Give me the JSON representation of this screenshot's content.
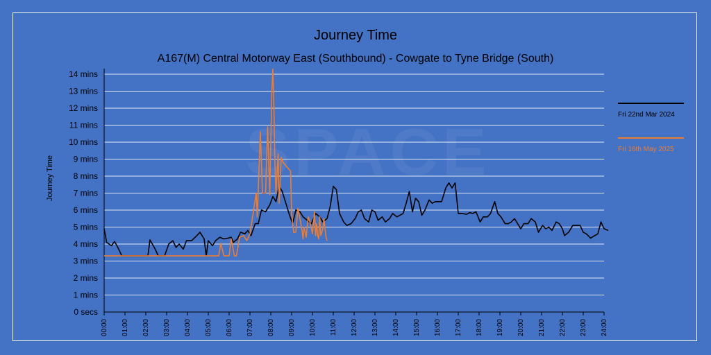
{
  "chart_data": {
    "type": "line",
    "title": "Journey Time",
    "subtitle": "A167(M) Central Motorway East (Southbound) - Cowgate to Tyne Bridge (South)",
    "ylabel": "Journey Time",
    "xlabel": "",
    "ylim": [
      0,
      14
    ],
    "xlim": [
      0,
      24
    ],
    "grid": true,
    "legend_position": "right",
    "y_ticks": [
      "0 secs",
      "1 mins",
      "2 mins",
      "3 mins",
      "4 mins",
      "5 mins",
      "6 mins",
      "7 mins",
      "8 mins",
      "9 mins",
      "10 mins",
      "11 mins",
      "12 mins",
      "13 mins",
      "14 mins"
    ],
    "x_ticks": [
      "00:00",
      "01:00",
      "02:00",
      "03:00",
      "04:00",
      "05:00",
      "06:00",
      "07:00",
      "08:00",
      "09:00",
      "10:00",
      "11:00",
      "12:00",
      "13:00",
      "14:00",
      "15:00",
      "16:00",
      "17:00",
      "18:00",
      "19:00",
      "20:00",
      "21:00",
      "22:00",
      "23:00",
      "24:00"
    ],
    "series": [
      {
        "name": "Fri 22nd Mar 2024",
        "color": "#000000",
        "points": [
          [
            0.0,
            4.9
          ],
          [
            0.12,
            4.1
          ],
          [
            0.35,
            3.9
          ],
          [
            0.5,
            4.15
          ],
          [
            0.7,
            3.7
          ],
          [
            0.85,
            3.3
          ],
          [
            1.2,
            3.3
          ],
          [
            1.6,
            3.3
          ],
          [
            2.1,
            3.3
          ],
          [
            2.2,
            4.25
          ],
          [
            2.45,
            3.7
          ],
          [
            2.6,
            3.3
          ],
          [
            2.9,
            3.3
          ],
          [
            3.1,
            4.0
          ],
          [
            3.3,
            4.2
          ],
          [
            3.45,
            3.8
          ],
          [
            3.6,
            4.0
          ],
          [
            3.8,
            3.7
          ],
          [
            3.95,
            4.2
          ],
          [
            4.2,
            4.2
          ],
          [
            4.45,
            4.5
          ],
          [
            4.6,
            4.7
          ],
          [
            4.8,
            4.3
          ],
          [
            4.9,
            3.3
          ],
          [
            5.0,
            4.2
          ],
          [
            5.2,
            3.9
          ],
          [
            5.35,
            4.2
          ],
          [
            5.55,
            4.4
          ],
          [
            5.75,
            4.3
          ],
          [
            5.95,
            4.35
          ],
          [
            6.1,
            4.4
          ],
          [
            6.2,
            4.1
          ],
          [
            6.4,
            4.3
          ],
          [
            6.55,
            4.7
          ],
          [
            6.75,
            4.6
          ],
          [
            6.9,
            4.8
          ],
          [
            7.05,
            4.5
          ],
          [
            7.25,
            5.2
          ],
          [
            7.4,
            5.2
          ],
          [
            7.55,
            6.0
          ],
          [
            7.75,
            5.9
          ],
          [
            7.95,
            6.3
          ],
          [
            8.1,
            6.8
          ],
          [
            8.25,
            6.5
          ],
          [
            8.4,
            7.4
          ],
          [
            8.55,
            7.1
          ],
          [
            8.7,
            6.5
          ],
          [
            8.9,
            5.7
          ],
          [
            9.05,
            5.2
          ],
          [
            9.2,
            6.0
          ],
          [
            9.4,
            5.9
          ],
          [
            9.55,
            5.6
          ],
          [
            9.75,
            5.4
          ],
          [
            9.95,
            5.2
          ],
          [
            10.15,
            5.8
          ],
          [
            10.35,
            5.6
          ],
          [
            10.5,
            5.3
          ],
          [
            10.7,
            5.5
          ],
          [
            10.85,
            6.2
          ],
          [
            11.0,
            7.4
          ],
          [
            11.15,
            7.2
          ],
          [
            11.3,
            5.8
          ],
          [
            11.5,
            5.3
          ],
          [
            11.65,
            5.1
          ],
          [
            11.85,
            5.2
          ],
          [
            12.05,
            5.5
          ],
          [
            12.2,
            5.9
          ],
          [
            12.35,
            6.0
          ],
          [
            12.5,
            5.5
          ],
          [
            12.7,
            5.3
          ],
          [
            12.85,
            6.0
          ],
          [
            13.0,
            5.9
          ],
          [
            13.15,
            5.4
          ],
          [
            13.35,
            5.6
          ],
          [
            13.5,
            5.3
          ],
          [
            13.7,
            5.5
          ],
          [
            13.85,
            5.8
          ],
          [
            14.05,
            5.6
          ],
          [
            14.2,
            5.7
          ],
          [
            14.35,
            5.8
          ],
          [
            14.5,
            6.4
          ],
          [
            14.65,
            7.1
          ],
          [
            14.8,
            5.9
          ],
          [
            14.95,
            6.7
          ],
          [
            15.1,
            6.5
          ],
          [
            15.25,
            5.7
          ],
          [
            15.4,
            6.0
          ],
          [
            15.6,
            6.6
          ],
          [
            15.75,
            6.4
          ],
          [
            15.9,
            6.5
          ],
          [
            16.05,
            6.5
          ],
          [
            16.2,
            6.5
          ],
          [
            16.4,
            7.3
          ],
          [
            16.55,
            7.6
          ],
          [
            16.7,
            7.3
          ],
          [
            16.85,
            7.6
          ],
          [
            17.0,
            5.8
          ],
          [
            17.2,
            5.8
          ],
          [
            17.4,
            5.75
          ],
          [
            17.55,
            5.85
          ],
          [
            17.7,
            5.8
          ],
          [
            17.85,
            5.9
          ],
          [
            18.05,
            5.3
          ],
          [
            18.2,
            5.6
          ],
          [
            18.4,
            5.6
          ],
          [
            18.55,
            5.8
          ],
          [
            18.75,
            6.5
          ],
          [
            18.9,
            5.8
          ],
          [
            19.05,
            5.6
          ],
          [
            19.25,
            5.2
          ],
          [
            19.4,
            5.2
          ],
          [
            19.55,
            5.3
          ],
          [
            19.7,
            5.5
          ],
          [
            19.85,
            5.2
          ],
          [
            20.0,
            4.9
          ],
          [
            20.15,
            5.2
          ],
          [
            20.35,
            5.2
          ],
          [
            20.5,
            5.5
          ],
          [
            20.7,
            5.3
          ],
          [
            20.85,
            4.7
          ],
          [
            21.05,
            5.1
          ],
          [
            21.2,
            4.9
          ],
          [
            21.35,
            5.0
          ],
          [
            21.5,
            4.8
          ],
          [
            21.7,
            5.3
          ],
          [
            21.85,
            5.2
          ],
          [
            22.0,
            4.9
          ],
          [
            22.1,
            4.5
          ],
          [
            22.3,
            4.7
          ],
          [
            22.5,
            5.1
          ],
          [
            22.65,
            5.1
          ],
          [
            22.85,
            5.1
          ],
          [
            23.0,
            4.7
          ],
          [
            23.15,
            4.6
          ],
          [
            23.35,
            4.35
          ],
          [
            23.55,
            4.5
          ],
          [
            23.7,
            4.6
          ],
          [
            23.85,
            5.3
          ],
          [
            24.0,
            4.9
          ],
          [
            24.2,
            4.8
          ]
        ]
      },
      {
        "name": "Fri 16th May 2025",
        "color": "#ed7d31",
        "points": [
          [
            0.0,
            3.3
          ],
          [
            2.0,
            3.3
          ],
          [
            5.5,
            3.3
          ],
          [
            5.6,
            4.05
          ],
          [
            5.75,
            3.3
          ],
          [
            6.0,
            3.3
          ],
          [
            6.1,
            4.3
          ],
          [
            6.25,
            3.3
          ],
          [
            6.35,
            3.3
          ],
          [
            6.5,
            4.4
          ],
          [
            6.7,
            4.5
          ],
          [
            6.85,
            4.2
          ],
          [
            7.0,
            4.6
          ],
          [
            7.1,
            5.4
          ],
          [
            7.3,
            7.0
          ],
          [
            7.35,
            5.6
          ],
          [
            7.5,
            10.6
          ],
          [
            7.6,
            7.0
          ],
          [
            7.75,
            7.0
          ],
          [
            7.85,
            10.9
          ],
          [
            7.95,
            6.9
          ],
          [
            8.05,
            13.0
          ],
          [
            8.1,
            14.3
          ],
          [
            8.15,
            12.0
          ],
          [
            8.2,
            8.7
          ],
          [
            8.25,
            7.0
          ],
          [
            8.35,
            9.3
          ],
          [
            8.4,
            6.4
          ],
          [
            8.5,
            9.1
          ],
          [
            8.6,
            8.8
          ],
          [
            8.8,
            8.5
          ],
          [
            8.95,
            8.3
          ],
          [
            9.0,
            5.8
          ],
          [
            9.1,
            4.7
          ],
          [
            9.2,
            4.7
          ],
          [
            9.3,
            6.1
          ],
          [
            9.4,
            5.5
          ],
          [
            9.5,
            4.8
          ],
          [
            9.55,
            4.3
          ],
          [
            9.6,
            5.0
          ],
          [
            9.7,
            4.4
          ],
          [
            9.8,
            5.6
          ],
          [
            9.9,
            5.2
          ],
          [
            10.0,
            4.6
          ],
          [
            10.1,
            5.9
          ],
          [
            10.15,
            4.5
          ],
          [
            10.2,
            5.2
          ],
          [
            10.25,
            4.5
          ],
          [
            10.3,
            4.3
          ],
          [
            10.35,
            5.6
          ],
          [
            10.4,
            4.5
          ],
          [
            10.5,
            4.9
          ],
          [
            10.55,
            5.5
          ],
          [
            10.65,
            4.4
          ],
          [
            10.7,
            4.2
          ]
        ]
      }
    ]
  }
}
